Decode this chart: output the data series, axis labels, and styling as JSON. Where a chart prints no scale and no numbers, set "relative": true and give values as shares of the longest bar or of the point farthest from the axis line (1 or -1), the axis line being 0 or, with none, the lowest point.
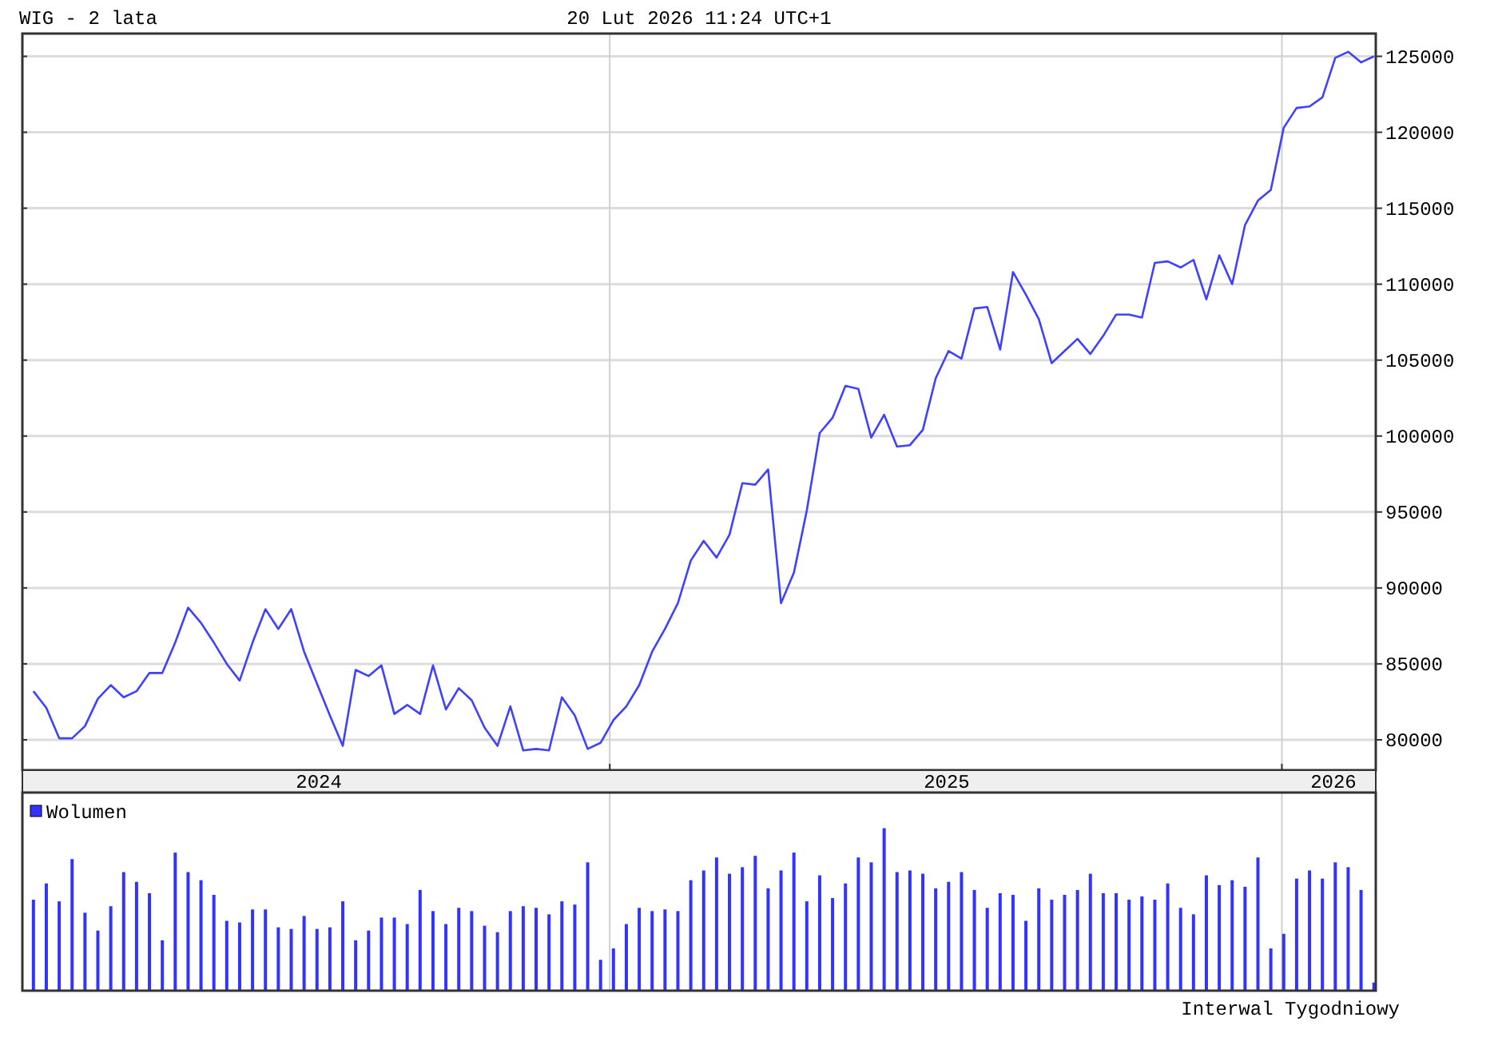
{
  "chart_data": [
    {
      "type": "line",
      "title": "WIG - 2 lata",
      "subtitle": "20 Lut 2026 11:24 UTC+1",
      "x": [
        "2024-02-23",
        "2024-03-01",
        "2024-03-08",
        "2024-03-15",
        "2024-03-22",
        "2024-03-29",
        "2024-04-05",
        "2024-04-12",
        "2024-04-19",
        "2024-04-26",
        "2024-05-03",
        "2024-05-10",
        "2024-05-17",
        "2024-05-24",
        "2024-05-31",
        "2024-06-07",
        "2024-06-14",
        "2024-06-21",
        "2024-06-28",
        "2024-07-05",
        "2024-07-12",
        "2024-07-19",
        "2024-07-26",
        "2024-08-02",
        "2024-08-09",
        "2024-08-16",
        "2024-08-23",
        "2024-08-30",
        "2024-09-06",
        "2024-09-13",
        "2024-09-20",
        "2024-09-27",
        "2024-10-04",
        "2024-10-11",
        "2024-10-18",
        "2024-10-25",
        "2024-11-01",
        "2024-11-08",
        "2024-11-15",
        "2024-11-22",
        "2024-11-29",
        "2024-12-06",
        "2024-12-13",
        "2024-12-20",
        "2024-12-27",
        "2025-01-03",
        "2025-01-10",
        "2025-01-17",
        "2025-01-24",
        "2025-01-31",
        "2025-02-07",
        "2025-02-14",
        "2025-02-21",
        "2025-02-28",
        "2025-03-07",
        "2025-03-14",
        "2025-03-21",
        "2025-03-28",
        "2025-04-04",
        "2025-04-11",
        "2025-04-18",
        "2025-04-25",
        "2025-05-02",
        "2025-05-09",
        "2025-05-16",
        "2025-05-23",
        "2025-05-30",
        "2025-06-06",
        "2025-06-13",
        "2025-06-20",
        "2025-06-27",
        "2025-07-04",
        "2025-07-11",
        "2025-07-18",
        "2025-07-25",
        "2025-08-01",
        "2025-08-08",
        "2025-08-15",
        "2025-08-22",
        "2025-08-29",
        "2025-09-05",
        "2025-09-12",
        "2025-09-19",
        "2025-09-26",
        "2025-10-03",
        "2025-10-10",
        "2025-10-17",
        "2025-10-24",
        "2025-10-31",
        "2025-11-07",
        "2025-11-14",
        "2025-11-21",
        "2025-11-28",
        "2025-12-05",
        "2025-12-12",
        "2025-12-19",
        "2025-12-26",
        "2026-01-02",
        "2026-01-09",
        "2026-01-16",
        "2026-01-23",
        "2026-01-30",
        "2026-02-06",
        "2026-02-13",
        "2026-02-20"
      ],
      "series": [
        {
          "color": "#4040ff",
          "values": [
            83200,
            82100,
            80100,
            80100,
            80900,
            82700,
            83600,
            82800,
            83200,
            84400,
            84400,
            86400,
            88700,
            87700,
            86400,
            85000,
            83900,
            86400,
            88600,
            87300,
            88600,
            85800,
            83700,
            81600,
            79600,
            84600,
            84200,
            84900,
            81700,
            82300,
            81700,
            84900,
            82000,
            83400,
            82600,
            80800,
            79600,
            82200,
            79300,
            79400,
            79300,
            82800,
            81600,
            79400,
            79800,
            81300,
            82200,
            83600,
            85800,
            87300,
            89000,
            91800,
            93100,
            92000,
            93500,
            96900,
            96800,
            97800,
            89000,
            91000,
            95100,
            100200,
            101200,
            103300,
            103100,
            99900,
            101400,
            99300,
            99400,
            100400,
            103800,
            105600,
            105100,
            108400,
            108500,
            105700,
            110800,
            109300,
            107700,
            104800,
            105600,
            106400,
            105400,
            106600,
            108000,
            108000,
            107800,
            111400,
            111500,
            111100,
            111600,
            109000,
            111900,
            110000,
            113900,
            115500,
            116200,
            120300,
            121600,
            121700,
            122300,
            124900,
            125300,
            124600,
            125000
          ]
        }
      ],
      "xlim": [
        "2024-02-17",
        "2026-02-21"
      ],
      "xticks": [
        {
          "value": "2024-07-27",
          "label": "2024"
        },
        {
          "value": "2025-01-01",
          "label": null
        },
        {
          "value": "2025-07-03",
          "label": "2025"
        },
        {
          "value": "2026-01-01",
          "label": null
        },
        {
          "value": "2026-01-29",
          "label": "2026"
        }
      ],
      "ylim": [
        78000,
        126500
      ],
      "yticks": [
        80000,
        85000,
        90000,
        95000,
        100000,
        105000,
        110000,
        115000,
        120000,
        125000
      ],
      "grid": true,
      "legend": false
    },
    {
      "type": "bar",
      "relative": true,
      "legend": "top left",
      "grid": "x",
      "tick_labels": false,
      "annotations": [
        "Interwal Tygodniowy"
      ],
      "xlim": [
        "2024-02-17",
        "2026-02-21"
      ],
      "xticks": [
        {
          "value": "2025-01-01",
          "label": null
        },
        {
          "value": "2026-01-01",
          "label": null
        }
      ],
      "x": [
        "2024-02-23",
        "2024-03-01",
        "2024-03-08",
        "2024-03-15",
        "2024-03-22",
        "2024-03-29",
        "2024-04-05",
        "2024-04-12",
        "2024-04-19",
        "2024-04-26",
        "2024-05-03",
        "2024-05-10",
        "2024-05-17",
        "2024-05-24",
        "2024-05-31",
        "2024-06-07",
        "2024-06-14",
        "2024-06-21",
        "2024-06-28",
        "2024-07-05",
        "2024-07-12",
        "2024-07-19",
        "2024-07-26",
        "2024-08-02",
        "2024-08-09",
        "2024-08-16",
        "2024-08-23",
        "2024-08-30",
        "2024-09-06",
        "2024-09-13",
        "2024-09-20",
        "2024-09-27",
        "2024-10-04",
        "2024-10-11",
        "2024-10-18",
        "2024-10-25",
        "2024-11-01",
        "2024-11-08",
        "2024-11-15",
        "2024-11-22",
        "2024-11-29",
        "2024-12-06",
        "2024-12-13",
        "2024-12-20",
        "2024-12-27",
        "2025-01-03",
        "2025-01-10",
        "2025-01-17",
        "2025-01-24",
        "2025-01-31",
        "2025-02-07",
        "2025-02-14",
        "2025-02-21",
        "2025-02-28",
        "2025-03-07",
        "2025-03-14",
        "2025-03-21",
        "2025-03-28",
        "2025-04-04",
        "2025-04-11",
        "2025-04-18",
        "2025-04-25",
        "2025-05-02",
        "2025-05-09",
        "2025-05-16",
        "2025-05-23",
        "2025-05-30",
        "2025-06-06",
        "2025-06-13",
        "2025-06-20",
        "2025-06-27",
        "2025-07-04",
        "2025-07-11",
        "2025-07-18",
        "2025-07-25",
        "2025-08-01",
        "2025-08-08",
        "2025-08-15",
        "2025-08-22",
        "2025-08-29",
        "2025-09-05",
        "2025-09-12",
        "2025-09-19",
        "2025-09-26",
        "2025-10-03",
        "2025-10-10",
        "2025-10-17",
        "2025-10-24",
        "2025-10-31",
        "2025-11-07",
        "2025-11-14",
        "2025-11-21",
        "2025-11-28",
        "2025-12-05",
        "2025-12-12",
        "2025-12-19",
        "2025-12-26",
        "2026-01-02",
        "2026-01-09",
        "2026-01-16",
        "2026-01-23",
        "2026-01-30",
        "2026-02-06",
        "2026-02-13",
        "2026-02-20"
      ],
      "series": [
        {
          "name": "Wolumen",
          "color": "#3333ff",
          "values": [
            0.56,
            0.66,
            0.55,
            0.81,
            0.48,
            0.37,
            0.52,
            0.73,
            0.67,
            0.6,
            0.31,
            0.85,
            0.73,
            0.68,
            0.59,
            0.43,
            0.42,
            0.5,
            0.5,
            0.39,
            0.38,
            0.46,
            0.38,
            0.39,
            0.55,
            0.31,
            0.37,
            0.45,
            0.45,
            0.41,
            0.62,
            0.49,
            0.41,
            0.51,
            0.49,
            0.4,
            0.36,
            0.49,
            0.52,
            0.51,
            0.47,
            0.55,
            0.53,
            0.79,
            0.19,
            0.26,
            0.41,
            0.51,
            0.49,
            0.5,
            0.49,
            0.68,
            0.74,
            0.82,
            0.72,
            0.76,
            0.83,
            0.63,
            0.74,
            0.85,
            0.55,
            0.71,
            0.57,
            0.66,
            0.82,
            0.79,
            1,
            0.73,
            0.74,
            0.72,
            0.63,
            0.67,
            0.73,
            0.62,
            0.51,
            0.6,
            0.59,
            0.43,
            0.63,
            0.56,
            0.59,
            0.62,
            0.72,
            0.6,
            0.6,
            0.56,
            0.58,
            0.56,
            0.66,
            0.51,
            0.47,
            0.71,
            0.65,
            0.68,
            0.64,
            0.82,
            0.26,
            0.35,
            0.69,
            0.74,
            0.69,
            0.79,
            0.76,
            0.62,
            0.05
          ]
        }
      ]
    }
  ]
}
